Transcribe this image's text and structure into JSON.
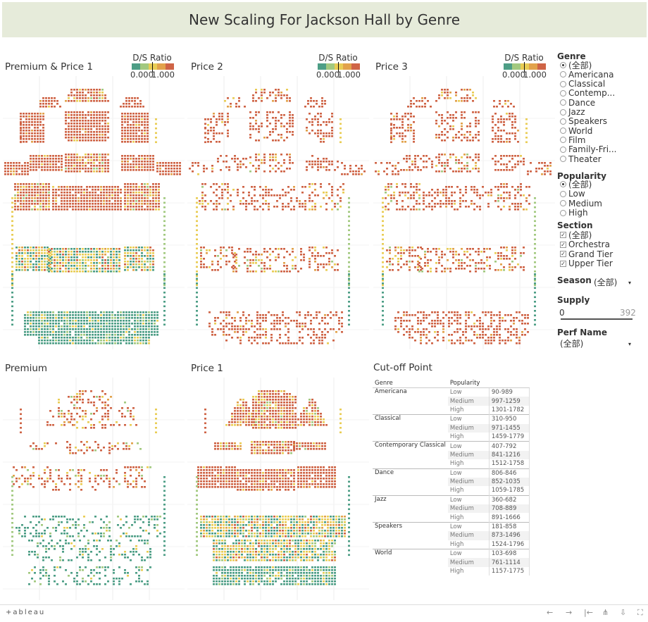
{
  "dashboard": {
    "title": "New Scaling For Jackson Hall by Genre"
  },
  "colors": {
    "low": "#4d9e86",
    "midlow": "#a2c97f",
    "mid": "#e9cd55",
    "midhigh": "#e2a24b",
    "high": "#cf6446"
  },
  "legend": {
    "title": "D/S Ratio",
    "min": "0.000",
    "max": "1.000"
  },
  "panels": {
    "premium_price1": "Premium & Price 1",
    "price2": "Price 2",
    "price3": "Price 3",
    "premium": "Premium",
    "price1": "Price 1",
    "cutoff": "Cut-off Point"
  },
  "filters": {
    "genre": {
      "title": "Genre",
      "options": [
        "(全部)",
        "Americana",
        "Classical",
        "Contemp...",
        "Dance",
        "Jazz",
        "Speakers",
        "World",
        "Film",
        "Family-Fri...",
        "Theater"
      ],
      "selected": "(全部)"
    },
    "popularity": {
      "title": "Popularity",
      "options": [
        "(全部)",
        "Low",
        "Medium",
        "High"
      ],
      "selected": "(全部)"
    },
    "section": {
      "title": "Section",
      "options": [
        "(全部)",
        "Orchestra",
        "Grand Tier",
        "Upper Tier"
      ]
    },
    "season": {
      "title": "Season",
      "value": "(全部)"
    },
    "supply": {
      "title": "Supply",
      "min": "0",
      "max": "392"
    },
    "perf_name": {
      "title": "Perf Name",
      "value": "(全部)"
    }
  },
  "cutoff_table": {
    "headers": [
      "Genre",
      "Popularity"
    ],
    "rows": [
      {
        "genre": "Americana",
        "popularity": "Low",
        "range": "90-989"
      },
      {
        "genre": "",
        "popularity": "Medium",
        "range": "997-1259"
      },
      {
        "genre": "",
        "popularity": "High",
        "range": "1301-1782"
      },
      {
        "genre": "Classical",
        "popularity": "Low",
        "range": "310-950"
      },
      {
        "genre": "",
        "popularity": "Medium",
        "range": "971-1455"
      },
      {
        "genre": "",
        "popularity": "High",
        "range": "1459-1779"
      },
      {
        "genre": "Contemporary Classical",
        "popularity": "Low",
        "range": "407-792"
      },
      {
        "genre": "",
        "popularity": "Medium",
        "range": "841-1216"
      },
      {
        "genre": "",
        "popularity": "High",
        "range": "1512-1758"
      },
      {
        "genre": "Dance",
        "popularity": "Low",
        "range": "806-846"
      },
      {
        "genre": "",
        "popularity": "Medium",
        "range": "852-1035"
      },
      {
        "genre": "",
        "popularity": "High",
        "range": "1059-1785"
      },
      {
        "genre": "Jazz",
        "popularity": "Low",
        "range": "360-682"
      },
      {
        "genre": "",
        "popularity": "Medium",
        "range": "708-889"
      },
      {
        "genre": "",
        "popularity": "High",
        "range": "891-1666"
      },
      {
        "genre": "Speakers",
        "popularity": "Low",
        "range": "181-858"
      },
      {
        "genre": "",
        "popularity": "Medium",
        "range": "873-1496"
      },
      {
        "genre": "",
        "popularity": "High",
        "range": "1524-1796"
      },
      {
        "genre": "World",
        "popularity": "Low",
        "range": "103-698"
      },
      {
        "genre": "",
        "popularity": "Medium",
        "range": "761-1114"
      },
      {
        "genre": "",
        "popularity": "High",
        "range": "1157-1775"
      }
    ]
  },
  "footer": {
    "logo": "+ableau"
  }
}
